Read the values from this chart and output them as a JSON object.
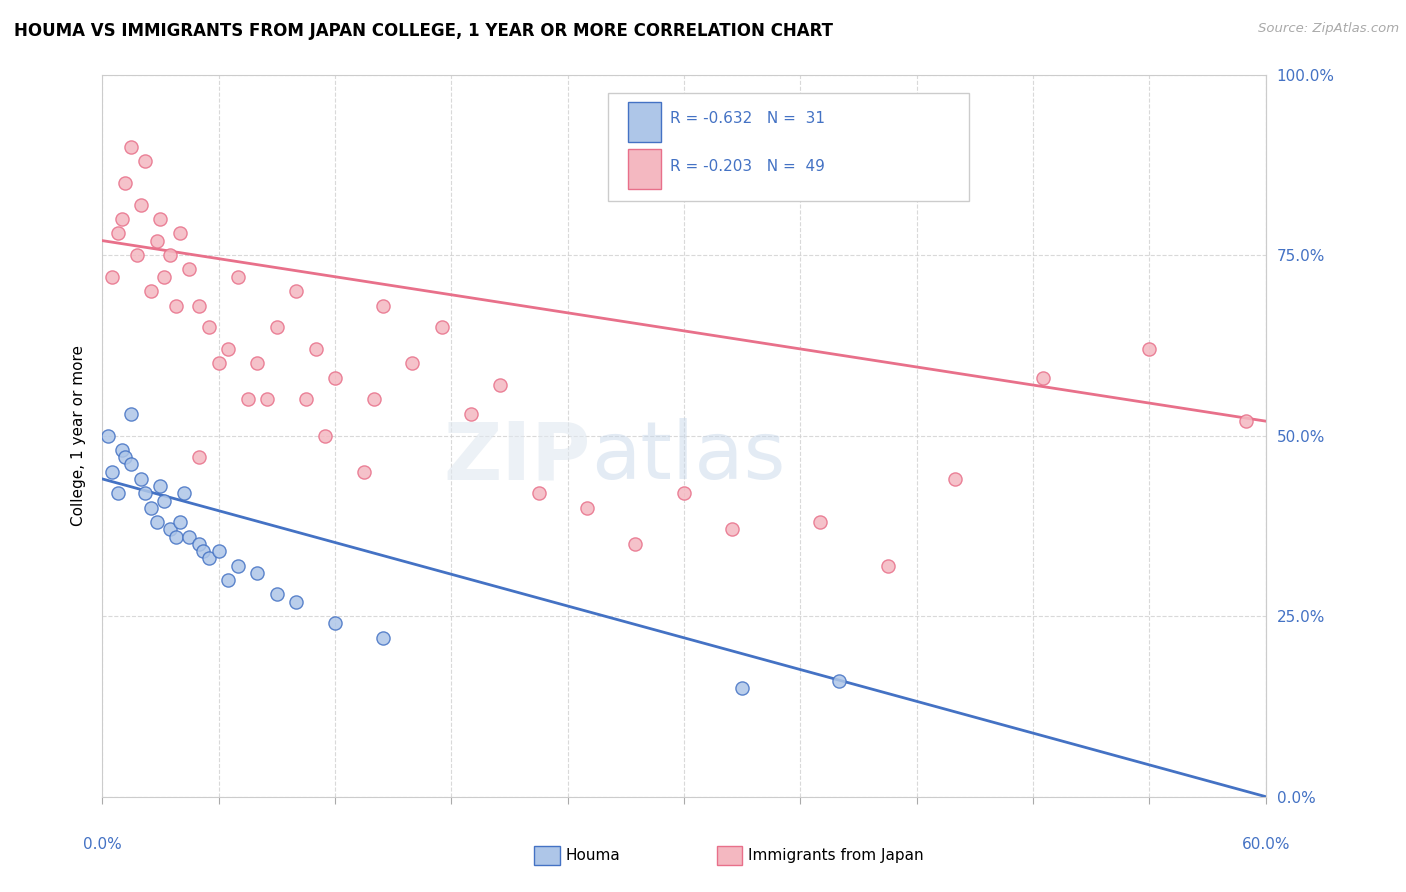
{
  "title": "HOUMA VS IMMIGRANTS FROM JAPAN COLLEGE, 1 YEAR OR MORE CORRELATION CHART",
  "source": "Source: ZipAtlas.com",
  "ylabel": "College, 1 year or more",
  "legend_text_color": "#4472c4",
  "houma_color": "#aec6e8",
  "houma_line_color": "#4472c4",
  "japan_color": "#f4b8c1",
  "japan_line_color": "#e8708a",
  "right_tick_color": "#4472c4",
  "grid_color": "#d0d0d0",
  "xmin": 0.0,
  "xmax": 60.0,
  "ymin": 0.0,
  "ymax": 100.0,
  "houma_line_x0": 0.0,
  "houma_line_y0": 44.0,
  "houma_line_x1": 60.0,
  "houma_line_y1": 0.0,
  "japan_line_x0": 0.0,
  "japan_line_y0": 77.0,
  "japan_line_x1": 60.0,
  "japan_line_y1": 52.0,
  "houma_scatter_x": [
    0.3,
    0.5,
    0.8,
    1.0,
    1.2,
    1.5,
    1.5,
    2.0,
    2.2,
    2.5,
    2.8,
    3.0,
    3.2,
    3.5,
    3.8,
    4.0,
    4.2,
    4.5,
    5.0,
    5.2,
    5.5,
    6.0,
    6.5,
    7.0,
    8.0,
    9.0,
    10.0,
    12.0,
    14.5,
    33.0,
    38.0
  ],
  "houma_scatter_y": [
    50.0,
    45.0,
    42.0,
    48.0,
    47.0,
    53.0,
    46.0,
    44.0,
    42.0,
    40.0,
    38.0,
    43.0,
    41.0,
    37.0,
    36.0,
    38.0,
    42.0,
    36.0,
    35.0,
    34.0,
    33.0,
    34.0,
    30.0,
    32.0,
    31.0,
    28.0,
    27.0,
    24.0,
    22.0,
    15.0,
    16.0
  ],
  "japan_scatter_x": [
    0.5,
    0.8,
    1.0,
    1.2,
    1.5,
    1.8,
    2.0,
    2.2,
    2.5,
    2.8,
    3.0,
    3.2,
    3.5,
    3.8,
    4.0,
    4.5,
    5.0,
    5.5,
    6.0,
    6.5,
    7.0,
    7.5,
    8.0,
    9.0,
    10.0,
    10.5,
    11.0,
    12.0,
    13.5,
    14.5,
    16.0,
    17.5,
    19.0,
    20.5,
    22.5,
    25.0,
    27.5,
    30.0,
    32.5,
    37.0,
    40.5,
    44.0,
    48.5,
    54.0,
    59.0,
    14.0,
    5.0,
    8.5,
    11.5
  ],
  "japan_scatter_y": [
    72.0,
    78.0,
    80.0,
    85.0,
    90.0,
    75.0,
    82.0,
    88.0,
    70.0,
    77.0,
    80.0,
    72.0,
    75.0,
    68.0,
    78.0,
    73.0,
    68.0,
    65.0,
    60.0,
    62.0,
    72.0,
    55.0,
    60.0,
    65.0,
    70.0,
    55.0,
    62.0,
    58.0,
    45.0,
    68.0,
    60.0,
    65.0,
    53.0,
    57.0,
    42.0,
    40.0,
    35.0,
    42.0,
    37.0,
    38.0,
    32.0,
    44.0,
    58.0,
    62.0,
    52.0,
    55.0,
    47.0,
    55.0,
    50.0
  ]
}
